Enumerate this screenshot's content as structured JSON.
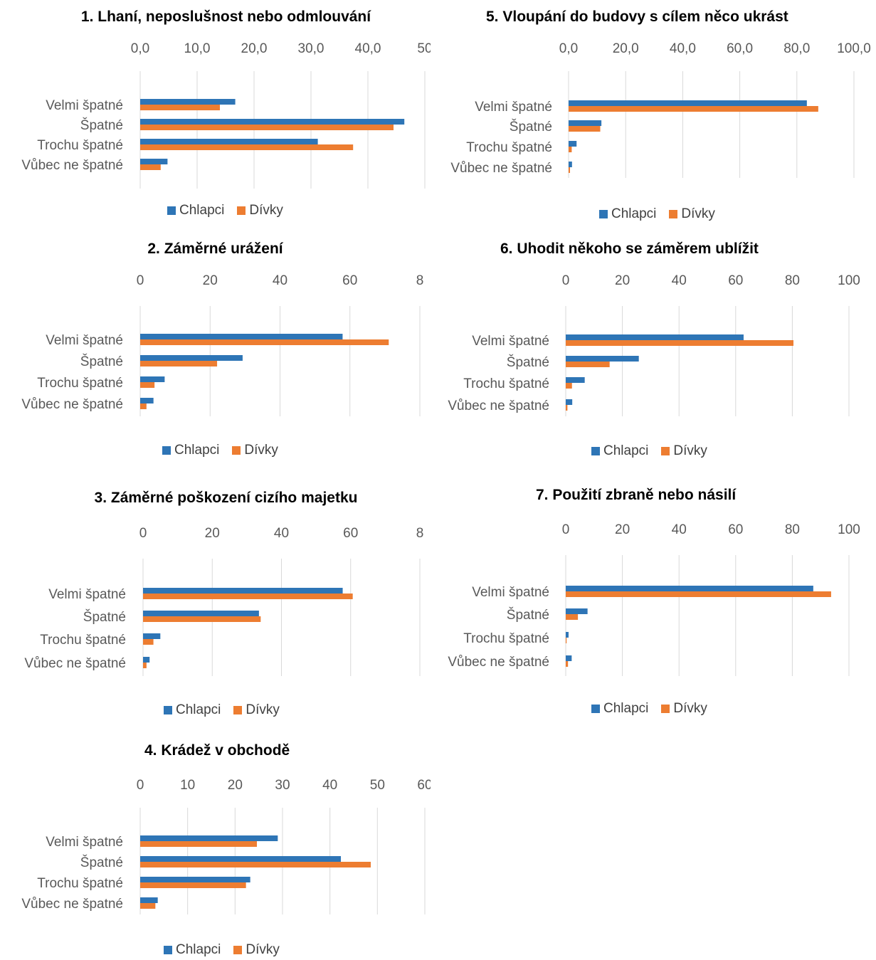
{
  "colors": {
    "boys": "#2e75b6",
    "girls": "#ed7d31",
    "grid": "#d9d9d9"
  },
  "legend": {
    "boys": "Chlapci",
    "girls": "Dívky"
  },
  "chart_data": [
    {
      "type": "bar",
      "orientation": "horizontal",
      "title": "1. Lhaní, neposlušnost nebo odmlouvání",
      "categories": [
        "Velmi špatné",
        "Špatné",
        "Trochu špatné",
        "Vůbec ne špatné"
      ],
      "series": [
        {
          "name": "Chlapci",
          "values": [
            16.7,
            46.4,
            31.2,
            4.8
          ]
        },
        {
          "name": "Dívky",
          "values": [
            14.0,
            44.5,
            37.4,
            3.6
          ]
        }
      ],
      "xlim": [
        0,
        50
      ],
      "ticks": [
        "0,0",
        "10,0",
        "20,0",
        "30,0",
        "40,0",
        "50"
      ],
      "grid": true,
      "legend": "bottom"
    },
    {
      "type": "bar",
      "orientation": "horizontal",
      "title": "2. Záměrné urážení",
      "categories": [
        "Velmi špatné",
        "Špatné",
        "Trochu špatné",
        "Vůbec ne špatné"
      ],
      "series": [
        {
          "name": "Chlapci",
          "values": [
            57.9,
            29.3,
            7.0,
            3.8
          ]
        },
        {
          "name": "Dívky",
          "values": [
            71.1,
            22.0,
            4.1,
            1.8
          ]
        }
      ],
      "xlim": [
        0,
        80
      ],
      "ticks": [
        "0",
        "20",
        "40",
        "60",
        "8"
      ],
      "grid": true,
      "legend": "bottom"
    },
    {
      "type": "bar",
      "orientation": "horizontal",
      "title": "3. Záměrné poškození cizího majetku",
      "categories": [
        "Velmi špatné",
        "Špatné",
        "Trochu špatné",
        "Vůbec ne špatné"
      ],
      "series": [
        {
          "name": "Chlapci",
          "values": [
            57.7,
            33.5,
            5.0,
            1.9
          ]
        },
        {
          "name": "Dívky",
          "values": [
            60.6,
            34.0,
            3.0,
            1.0
          ]
        }
      ],
      "xlim": [
        0,
        80
      ],
      "ticks": [
        "0",
        "20",
        "40",
        "60",
        "8"
      ],
      "grid": true,
      "legend": "bottom"
    },
    {
      "type": "bar",
      "orientation": "horizontal",
      "title": "4. Krádež v obchodě",
      "categories": [
        "Velmi špatné",
        "Špatné",
        "Trochu špatné",
        "Vůbec ne špatné"
      ],
      "series": [
        {
          "name": "Chlapci",
          "values": [
            29.0,
            42.3,
            23.2,
            3.7
          ]
        },
        {
          "name": "Dívky",
          "values": [
            24.6,
            48.6,
            22.3,
            3.2
          ]
        }
      ],
      "xlim": [
        0,
        60
      ],
      "ticks": [
        "0",
        "10",
        "20",
        "30",
        "40",
        "50",
        "60"
      ],
      "grid": true,
      "legend": "bottom"
    },
    {
      "type": "bar",
      "orientation": "horizontal",
      "title": "5. Vloupání do budovy s cílem něco ukrást",
      "categories": [
        "Velmi špatné",
        "Špatné",
        "Trochu špatné",
        "Vůbec ne špatné"
      ],
      "series": [
        {
          "name": "Chlapci",
          "values": [
            83.5,
            11.5,
            2.8,
            1.2
          ]
        },
        {
          "name": "Dívky",
          "values": [
            87.5,
            11.1,
            1.1,
            0.5
          ]
        }
      ],
      "xlim": [
        0,
        100
      ],
      "ticks": [
        "0,0",
        "20,0",
        "40,0",
        "60,0",
        "80,0",
        "100,0"
      ],
      "grid": true,
      "legend": "bottom"
    },
    {
      "type": "bar",
      "orientation": "horizontal",
      "title": "6. Uhodit někoho se záměrem ublížit",
      "categories": [
        "Velmi špatné",
        "Špatné",
        "Trochu špatné",
        "Vůbec ne špatné"
      ],
      "series": [
        {
          "name": "Chlapci",
          "values": [
            62.8,
            25.8,
            6.7,
            2.3
          ]
        },
        {
          "name": "Dívky",
          "values": [
            80.4,
            15.5,
            2.2,
            0.6
          ]
        }
      ],
      "xlim": [
        0,
        100
      ],
      "ticks": [
        "0",
        "20",
        "40",
        "60",
        "80",
        "100"
      ],
      "grid": true,
      "legend": "bottom"
    },
    {
      "type": "bar",
      "orientation": "horizontal",
      "title": "7. Použití zbraně nebo násilí",
      "categories": [
        "Velmi špatné",
        "Špatné",
        "Trochu špatné",
        "Vůbec ne špatné"
      ],
      "series": [
        {
          "name": "Chlapci",
          "values": [
            87.4,
            7.7,
            1.0,
            2.1
          ]
        },
        {
          "name": "Dívky",
          "values": [
            93.7,
            4.3,
            0.3,
            0.8
          ]
        }
      ],
      "xlim": [
        0,
        100
      ],
      "ticks": [
        "0",
        "20",
        "40",
        "60",
        "80",
        "100"
      ],
      "grid": true,
      "legend": "bottom"
    }
  ]
}
